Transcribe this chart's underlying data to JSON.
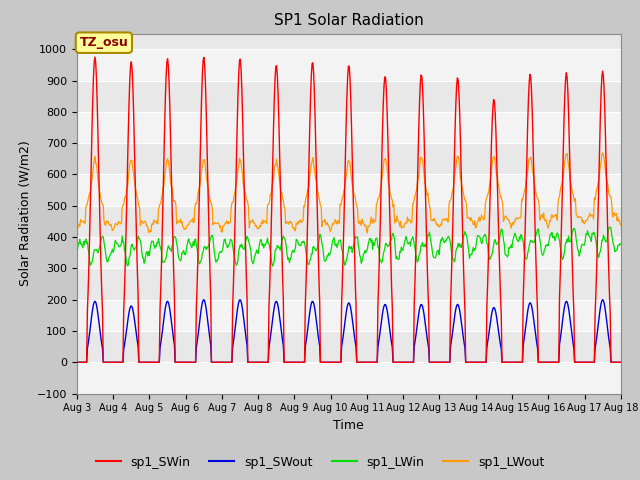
{
  "title": "SP1 Solar Radiation",
  "xlabel": "Time",
  "ylabel": "Solar Radiation (W/m2)",
  "ylim": [
    -100,
    1050
  ],
  "yticks": [
    -100,
    0,
    100,
    200,
    300,
    400,
    500,
    600,
    700,
    800,
    900,
    1000
  ],
  "fig_bg": "#c8c8c8",
  "plot_bg": "#e8e8e8",
  "tz_label": "TZ_osu",
  "tz_box_color": "#ffff99",
  "tz_box_edge": "#aa8800",
  "legend_entries": [
    "sp1_SWin",
    "sp1_SWout",
    "sp1_LWin",
    "sp1_LWout"
  ],
  "legend_colors": [
    "#ff0000",
    "#0000dd",
    "#00dd00",
    "#ff9900"
  ],
  "num_days": 15,
  "colors": {
    "SWin": "#ff0000",
    "SWout": "#0000dd",
    "LWin": "#00dd00",
    "LWout": "#ff9900"
  },
  "sw_peaks": [
    975,
    960,
    970,
    975,
    970,
    950,
    960,
    950,
    915,
    920,
    910,
    840,
    920,
    925,
    930
  ],
  "sw_out_peaks": [
    195,
    180,
    195,
    200,
    200,
    195,
    195,
    190,
    185,
    185,
    185,
    175,
    190,
    195,
    200
  ],
  "lw_in_base": 360,
  "lw_out_base": 420
}
